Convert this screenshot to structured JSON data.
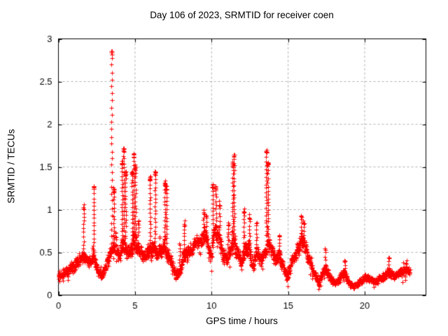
{
  "colors": {
    "background": "#ffffff",
    "axis": "#000000",
    "grid": "#b0b0b0",
    "marker": "#ff0000"
  },
  "chart_data": {
    "type": "scatter",
    "title": "Day 106 of 2023, SRMTID for receiver coen",
    "xlabel": "GPS time / hours",
    "ylabel": "SRMTID / TECUs",
    "xlim": [
      0,
      24
    ],
    "ylim": [
      0,
      3
    ],
    "xticks": [
      0,
      5,
      10,
      15,
      20
    ],
    "xtick_labels": [
      "0",
      "5",
      "10",
      "15",
      "20"
    ],
    "yticks": [
      0,
      0.5,
      1,
      1.5,
      2,
      2.5,
      3
    ],
    "ytick_labels": [
      "0",
      "0.5",
      "1",
      "1.5",
      "2",
      "2.5",
      "3"
    ],
    "grid": true,
    "legend": "none",
    "marker": "+",
    "color": "#ff0000",
    "x_start": 0.0,
    "x_end": 22.95,
    "sample_interval_hours": 0.00833,
    "baseline_band": [
      [
        0.0,
        0.24,
        0.1
      ],
      [
        0.4,
        0.26,
        0.09
      ],
      [
        0.8,
        0.3,
        0.1
      ],
      [
        1.2,
        0.38,
        0.11
      ],
      [
        1.6,
        0.45,
        0.12
      ],
      [
        1.9,
        0.38,
        0.1
      ],
      [
        2.25,
        0.45,
        0.12
      ],
      [
        2.55,
        0.3,
        0.1
      ],
      [
        2.8,
        0.22,
        0.09
      ],
      [
        3.1,
        0.35,
        0.1
      ],
      [
        3.45,
        0.52,
        0.1
      ],
      [
        3.7,
        0.6,
        0.18
      ],
      [
        3.95,
        0.45,
        0.12
      ],
      [
        4.2,
        0.6,
        0.2
      ],
      [
        4.5,
        0.48,
        0.13
      ],
      [
        4.9,
        0.58,
        0.2
      ],
      [
        5.2,
        0.6,
        0.18
      ],
      [
        5.5,
        0.45,
        0.12
      ],
      [
        5.8,
        0.5,
        0.14
      ],
      [
        6.1,
        0.55,
        0.17
      ],
      [
        6.5,
        0.5,
        0.15
      ],
      [
        6.9,
        0.55,
        0.18
      ],
      [
        7.3,
        0.4,
        0.13
      ],
      [
        7.6,
        0.28,
        0.1
      ],
      [
        7.9,
        0.25,
        0.1
      ],
      [
        8.2,
        0.48,
        0.15
      ],
      [
        8.6,
        0.52,
        0.12
      ],
      [
        9.0,
        0.62,
        0.11
      ],
      [
        9.3,
        0.65,
        0.12
      ],
      [
        9.6,
        0.68,
        0.14
      ],
      [
        9.9,
        0.45,
        0.15
      ],
      [
        10.15,
        0.75,
        0.25
      ],
      [
        10.45,
        0.7,
        0.2
      ],
      [
        10.75,
        0.45,
        0.15
      ],
      [
        11.05,
        0.45,
        0.18
      ],
      [
        11.4,
        0.62,
        0.22
      ],
      [
        11.7,
        0.5,
        0.15
      ],
      [
        11.95,
        0.35,
        0.13
      ],
      [
        12.15,
        0.55,
        0.17
      ],
      [
        12.45,
        0.55,
        0.15
      ],
      [
        12.65,
        0.3,
        0.13
      ],
      [
        12.9,
        0.5,
        0.15
      ],
      [
        13.2,
        0.4,
        0.12
      ],
      [
        13.45,
        0.5,
        0.14
      ],
      [
        13.65,
        0.62,
        0.2
      ],
      [
        13.95,
        0.5,
        0.15
      ],
      [
        14.25,
        0.4,
        0.12
      ],
      [
        14.45,
        0.45,
        0.14
      ],
      [
        14.7,
        0.3,
        0.1
      ],
      [
        14.95,
        0.2,
        0.09
      ],
      [
        15.2,
        0.4,
        0.12
      ],
      [
        15.5,
        0.5,
        0.13
      ],
      [
        15.8,
        0.63,
        0.17
      ],
      [
        16.05,
        0.58,
        0.16
      ],
      [
        16.35,
        0.42,
        0.13
      ],
      [
        16.7,
        0.25,
        0.1
      ],
      [
        17.0,
        0.17,
        0.08
      ],
      [
        17.4,
        0.33,
        0.12
      ],
      [
        17.75,
        0.2,
        0.08
      ],
      [
        18.05,
        0.14,
        0.07
      ],
      [
        18.35,
        0.19,
        0.08
      ],
      [
        18.65,
        0.27,
        0.1
      ],
      [
        19.0,
        0.13,
        0.06
      ],
      [
        19.35,
        0.11,
        0.05
      ],
      [
        19.7,
        0.16,
        0.06
      ],
      [
        20.0,
        0.22,
        0.08
      ],
      [
        20.35,
        0.18,
        0.07
      ],
      [
        20.65,
        0.15,
        0.06
      ],
      [
        20.95,
        0.2,
        0.07
      ],
      [
        21.25,
        0.22,
        0.08
      ],
      [
        21.55,
        0.27,
        0.09
      ],
      [
        21.85,
        0.22,
        0.08
      ],
      [
        22.15,
        0.25,
        0.08
      ],
      [
        22.45,
        0.28,
        0.09
      ],
      [
        22.75,
        0.3,
        0.09
      ],
      [
        22.95,
        0.27,
        0.08
      ]
    ],
    "spikes": [
      [
        1.65,
        1.06,
        0.5
      ],
      [
        2.3,
        1.28,
        0.48
      ],
      [
        3.47,
        2.86,
        0.6
      ],
      [
        3.62,
        1.25,
        0.65
      ],
      [
        4.15,
        1.58,
        0.7
      ],
      [
        4.27,
        1.73,
        0.75
      ],
      [
        4.38,
        1.45,
        0.7
      ],
      [
        4.82,
        1.45,
        0.65
      ],
      [
        4.92,
        1.66,
        0.7
      ],
      [
        5.02,
        1.52,
        0.68
      ],
      [
        5.22,
        0.88,
        0.7
      ],
      [
        5.98,
        1.38,
        0.6
      ],
      [
        6.32,
        1.45,
        0.62
      ],
      [
        6.95,
        1.33,
        0.65
      ],
      [
        7.05,
        1.28,
        0.62
      ],
      [
        7.92,
        0.6,
        0.33
      ],
      [
        8.22,
        0.86,
        0.55
      ],
      [
        9.48,
        1.0,
        0.75
      ],
      [
        9.65,
        0.94,
        0.72
      ],
      [
        10.08,
        1.3,
        0.85
      ],
      [
        10.28,
        1.28,
        0.82
      ],
      [
        10.52,
        1.1,
        0.78
      ],
      [
        11.08,
        0.85,
        0.55
      ],
      [
        11.38,
        1.55,
        0.7
      ],
      [
        11.46,
        1.65,
        0.72
      ],
      [
        12.12,
        1.02,
        0.62
      ],
      [
        12.47,
        0.95,
        0.6
      ],
      [
        12.92,
        0.85,
        0.55
      ],
      [
        13.58,
        1.71,
        0.7
      ],
      [
        13.68,
        1.55,
        0.68
      ],
      [
        14.42,
        0.7,
        0.48
      ],
      [
        15.85,
        0.93,
        0.68
      ],
      [
        16.02,
        0.88,
        0.62
      ],
      [
        17.42,
        0.55,
        0.36
      ],
      [
        18.68,
        0.4,
        0.28
      ],
      [
        21.58,
        0.44,
        0.28
      ],
      [
        22.72,
        0.4,
        0.3
      ]
    ],
    "notable_peaks": [
      [
        3.47,
        2.86
      ],
      [
        4.27,
        1.73
      ],
      [
        13.58,
        1.71
      ],
      [
        4.92,
        1.66
      ],
      [
        11.46,
        1.65
      ],
      [
        4.15,
        1.58
      ],
      [
        6.32,
        1.45
      ],
      [
        5.98,
        1.38
      ],
      [
        6.95,
        1.33
      ],
      [
        10.08,
        1.3
      ],
      [
        2.3,
        1.28
      ],
      [
        3.62,
        1.25
      ],
      [
        10.52,
        1.1
      ],
      [
        1.65,
        1.06
      ],
      [
        12.12,
        1.02
      ],
      [
        9.48,
        1.0
      ]
    ]
  }
}
